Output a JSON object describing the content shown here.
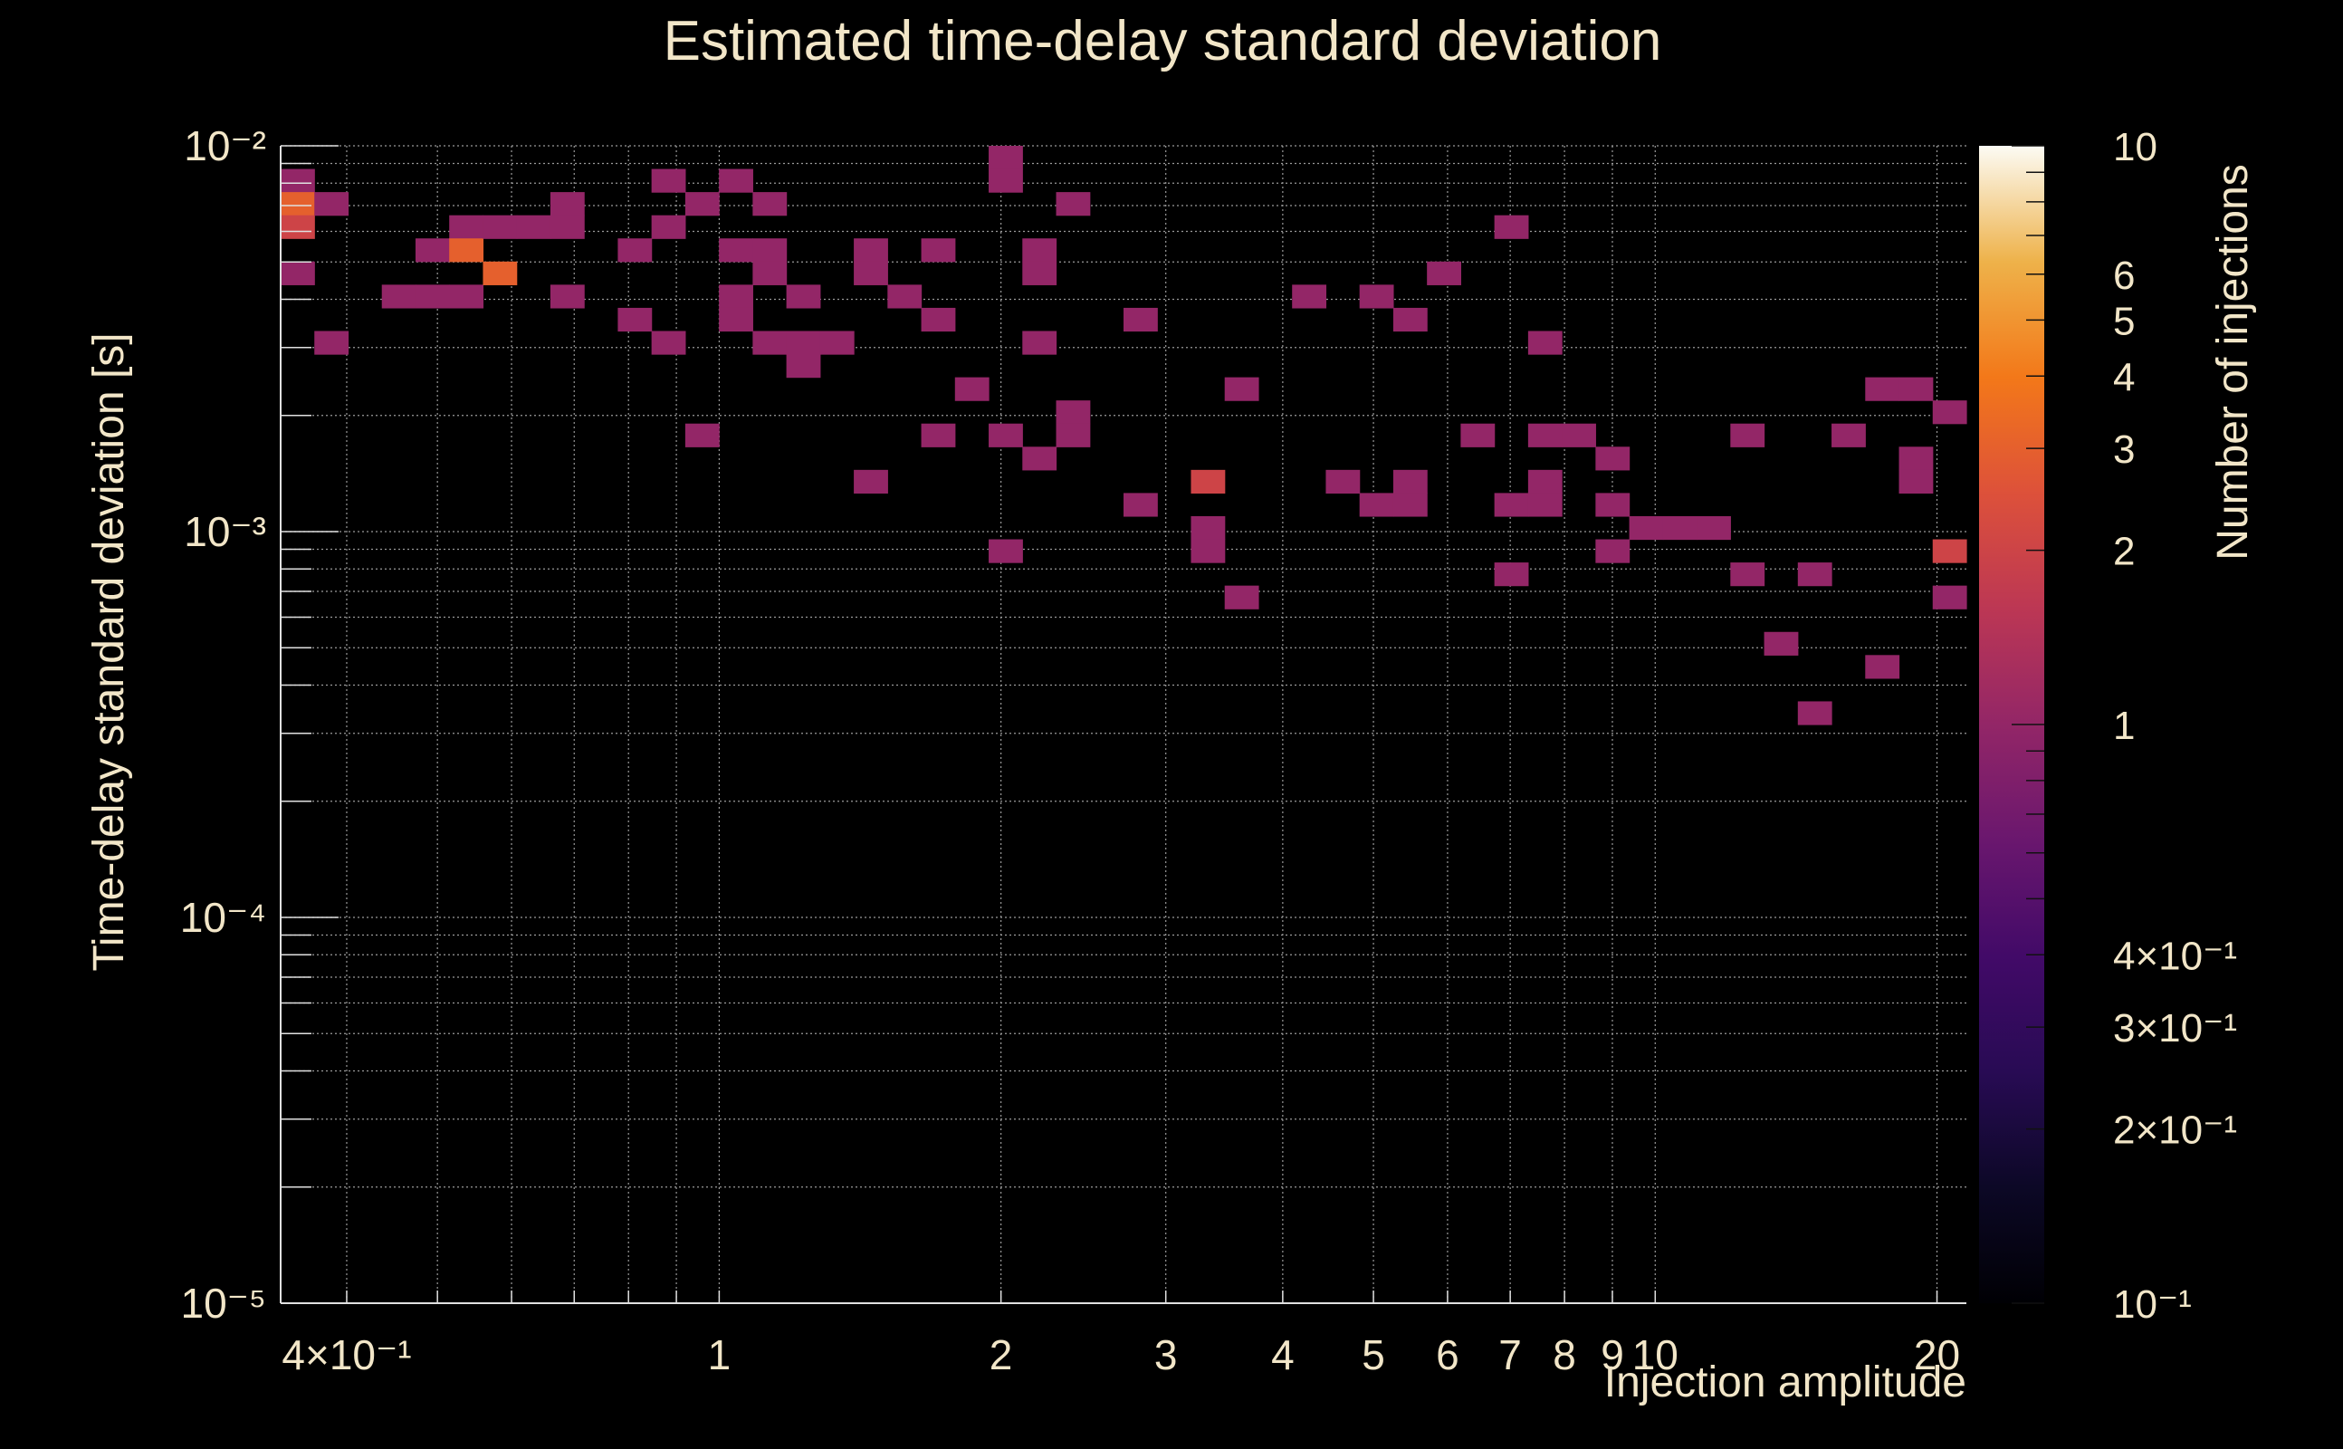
{
  "chart_data": {
    "type": "heatmap",
    "title": "Estimated time-delay standard deviation",
    "xlabel": "Injection amplitude",
    "ylabel": "Time-delay standard deviation [s]",
    "colorbar_label": "Number of injections",
    "x_scale": "log",
    "y_scale": "log",
    "z_scale": "log",
    "xlim": [
      0.34,
      21.5
    ],
    "ylim": [
      1e-05,
      0.01
    ],
    "zlim": [
      0.1,
      10
    ],
    "grid": true,
    "x_ticks": [
      {
        "value": 0.4,
        "label": "4×10⁻¹"
      },
      {
        "value": 1,
        "label": "1"
      },
      {
        "value": 2,
        "label": "2"
      },
      {
        "value": 3,
        "label": "3"
      },
      {
        "value": 4,
        "label": "4"
      },
      {
        "value": 5,
        "label": "5"
      },
      {
        "value": 6,
        "label": "6"
      },
      {
        "value": 7,
        "label": "7"
      },
      {
        "value": 8,
        "label": "8"
      },
      {
        "value": 9,
        "label": "9"
      },
      {
        "value": 10,
        "label": "10"
      },
      {
        "value": 20,
        "label": "20"
      }
    ],
    "y_ticks": [
      {
        "value": 1e-05,
        "label": "10⁻⁵"
      },
      {
        "value": 0.0001,
        "label": "10⁻⁴"
      },
      {
        "value": 0.001,
        "label": "10⁻³"
      },
      {
        "value": 0.01,
        "label": "10⁻²"
      }
    ],
    "colorbar_ticks": [
      {
        "value": 0.1,
        "label": "10⁻¹"
      },
      {
        "value": 0.2,
        "label": "2×10⁻¹"
      },
      {
        "value": 0.3,
        "label": "3×10⁻¹"
      },
      {
        "value": 0.4,
        "label": "4×10⁻¹"
      },
      {
        "value": 1,
        "label": "1"
      },
      {
        "value": 2,
        "label": "2"
      },
      {
        "value": 3,
        "label": "3"
      },
      {
        "value": 4,
        "label": "4"
      },
      {
        "value": 5,
        "label": "5"
      },
      {
        "value": 6,
        "label": "6"
      },
      {
        "value": 10,
        "label": "10"
      }
    ],
    "bins": {
      "x_count": 50,
      "y_count": 50
    },
    "cells": [
      {
        "ix": 0,
        "iy": 48,
        "count": 1
      },
      {
        "ix": 0,
        "iy": 47,
        "count": 3
      },
      {
        "ix": 0,
        "iy": 46,
        "count": 2
      },
      {
        "ix": 0,
        "iy": 44,
        "count": 1
      },
      {
        "ix": 1,
        "iy": 47,
        "count": 1
      },
      {
        "ix": 1,
        "iy": 41,
        "count": 1
      },
      {
        "ix": 3,
        "iy": 43,
        "count": 1
      },
      {
        "ix": 4,
        "iy": 45,
        "count": 1
      },
      {
        "ix": 4,
        "iy": 43,
        "count": 1
      },
      {
        "ix": 5,
        "iy": 46,
        "count": 1
      },
      {
        "ix": 5,
        "iy": 45,
        "count": 3
      },
      {
        "ix": 5,
        "iy": 43,
        "count": 1
      },
      {
        "ix": 6,
        "iy": 46,
        "count": 1
      },
      {
        "ix": 6,
        "iy": 44,
        "count": 3
      },
      {
        "ix": 7,
        "iy": 46,
        "count": 1
      },
      {
        "ix": 8,
        "iy": 47,
        "count": 1
      },
      {
        "ix": 8,
        "iy": 46,
        "count": 1
      },
      {
        "ix": 8,
        "iy": 43,
        "count": 1
      },
      {
        "ix": 10,
        "iy": 45,
        "count": 1
      },
      {
        "ix": 10,
        "iy": 42,
        "count": 1
      },
      {
        "ix": 11,
        "iy": 48,
        "count": 1
      },
      {
        "ix": 11,
        "iy": 46,
        "count": 1
      },
      {
        "ix": 11,
        "iy": 41,
        "count": 1
      },
      {
        "ix": 12,
        "iy": 47,
        "count": 1
      },
      {
        "ix": 12,
        "iy": 37,
        "count": 1
      },
      {
        "ix": 13,
        "iy": 48,
        "count": 1
      },
      {
        "ix": 13,
        "iy": 45,
        "count": 1
      },
      {
        "ix": 13,
        "iy": 43,
        "count": 1
      },
      {
        "ix": 13,
        "iy": 42,
        "count": 1
      },
      {
        "ix": 14,
        "iy": 47,
        "count": 1
      },
      {
        "ix": 14,
        "iy": 45,
        "count": 1
      },
      {
        "ix": 14,
        "iy": 44,
        "count": 1
      },
      {
        "ix": 14,
        "iy": 41,
        "count": 1
      },
      {
        "ix": 15,
        "iy": 43,
        "count": 1
      },
      {
        "ix": 15,
        "iy": 41,
        "count": 1
      },
      {
        "ix": 15,
        "iy": 40,
        "count": 1
      },
      {
        "ix": 16,
        "iy": 41,
        "count": 1
      },
      {
        "ix": 17,
        "iy": 45,
        "count": 1
      },
      {
        "ix": 17,
        "iy": 44,
        "count": 1
      },
      {
        "ix": 17,
        "iy": 35,
        "count": 1
      },
      {
        "ix": 18,
        "iy": 43,
        "count": 1
      },
      {
        "ix": 19,
        "iy": 45,
        "count": 1
      },
      {
        "ix": 19,
        "iy": 42,
        "count": 1
      },
      {
        "ix": 19,
        "iy": 37,
        "count": 1
      },
      {
        "ix": 20,
        "iy": 39,
        "count": 1
      },
      {
        "ix": 21,
        "iy": 49,
        "count": 1
      },
      {
        "ix": 21,
        "iy": 48,
        "count": 1
      },
      {
        "ix": 21,
        "iy": 37,
        "count": 1
      },
      {
        "ix": 21,
        "iy": 32,
        "count": 1
      },
      {
        "ix": 22,
        "iy": 45,
        "count": 1
      },
      {
        "ix": 22,
        "iy": 44,
        "count": 1
      },
      {
        "ix": 22,
        "iy": 41,
        "count": 1
      },
      {
        "ix": 22,
        "iy": 36,
        "count": 1
      },
      {
        "ix": 23,
        "iy": 47,
        "count": 1
      },
      {
        "ix": 23,
        "iy": 38,
        "count": 1
      },
      {
        "ix": 23,
        "iy": 37,
        "count": 1
      },
      {
        "ix": 25,
        "iy": 42,
        "count": 1
      },
      {
        "ix": 25,
        "iy": 34,
        "count": 1
      },
      {
        "ix": 27,
        "iy": 35,
        "count": 2
      },
      {
        "ix": 27,
        "iy": 33,
        "count": 1
      },
      {
        "ix": 27,
        "iy": 32,
        "count": 1
      },
      {
        "ix": 28,
        "iy": 39,
        "count": 1
      },
      {
        "ix": 28,
        "iy": 30,
        "count": 1
      },
      {
        "ix": 30,
        "iy": 43,
        "count": 1
      },
      {
        "ix": 31,
        "iy": 35,
        "count": 1
      },
      {
        "ix": 32,
        "iy": 43,
        "count": 1
      },
      {
        "ix": 32,
        "iy": 34,
        "count": 1
      },
      {
        "ix": 33,
        "iy": 42,
        "count": 1
      },
      {
        "ix": 33,
        "iy": 35,
        "count": 1
      },
      {
        "ix": 33,
        "iy": 34,
        "count": 1
      },
      {
        "ix": 34,
        "iy": 44,
        "count": 1
      },
      {
        "ix": 35,
        "iy": 37,
        "count": 1
      },
      {
        "ix": 36,
        "iy": 46,
        "count": 1
      },
      {
        "ix": 36,
        "iy": 34,
        "count": 1
      },
      {
        "ix": 36,
        "iy": 31,
        "count": 1
      },
      {
        "ix": 37,
        "iy": 41,
        "count": 1
      },
      {
        "ix": 37,
        "iy": 37,
        "count": 1
      },
      {
        "ix": 37,
        "iy": 35,
        "count": 1
      },
      {
        "ix": 37,
        "iy": 34,
        "count": 1
      },
      {
        "ix": 38,
        "iy": 37,
        "count": 1
      },
      {
        "ix": 39,
        "iy": 36,
        "count": 1
      },
      {
        "ix": 39,
        "iy": 34,
        "count": 1
      },
      {
        "ix": 39,
        "iy": 32,
        "count": 1
      },
      {
        "ix": 40,
        "iy": 33,
        "count": 1
      },
      {
        "ix": 41,
        "iy": 33,
        "count": 1
      },
      {
        "ix": 42,
        "iy": 33,
        "count": 1
      },
      {
        "ix": 43,
        "iy": 37,
        "count": 1
      },
      {
        "ix": 43,
        "iy": 31,
        "count": 1
      },
      {
        "ix": 44,
        "iy": 28,
        "count": 1
      },
      {
        "ix": 45,
        "iy": 31,
        "count": 1
      },
      {
        "ix": 45,
        "iy": 25,
        "count": 1
      },
      {
        "ix": 46,
        "iy": 37,
        "count": 1
      },
      {
        "ix": 47,
        "iy": 39,
        "count": 1
      },
      {
        "ix": 47,
        "iy": 27,
        "count": 1
      },
      {
        "ix": 48,
        "iy": 39,
        "count": 1
      },
      {
        "ix": 48,
        "iy": 36,
        "count": 1
      },
      {
        "ix": 48,
        "iy": 35,
        "count": 1
      },
      {
        "ix": 49,
        "iy": 38,
        "count": 1
      },
      {
        "ix": 49,
        "iy": 32,
        "count": 2
      },
      {
        "ix": 49,
        "iy": 30,
        "count": 1
      }
    ]
  }
}
